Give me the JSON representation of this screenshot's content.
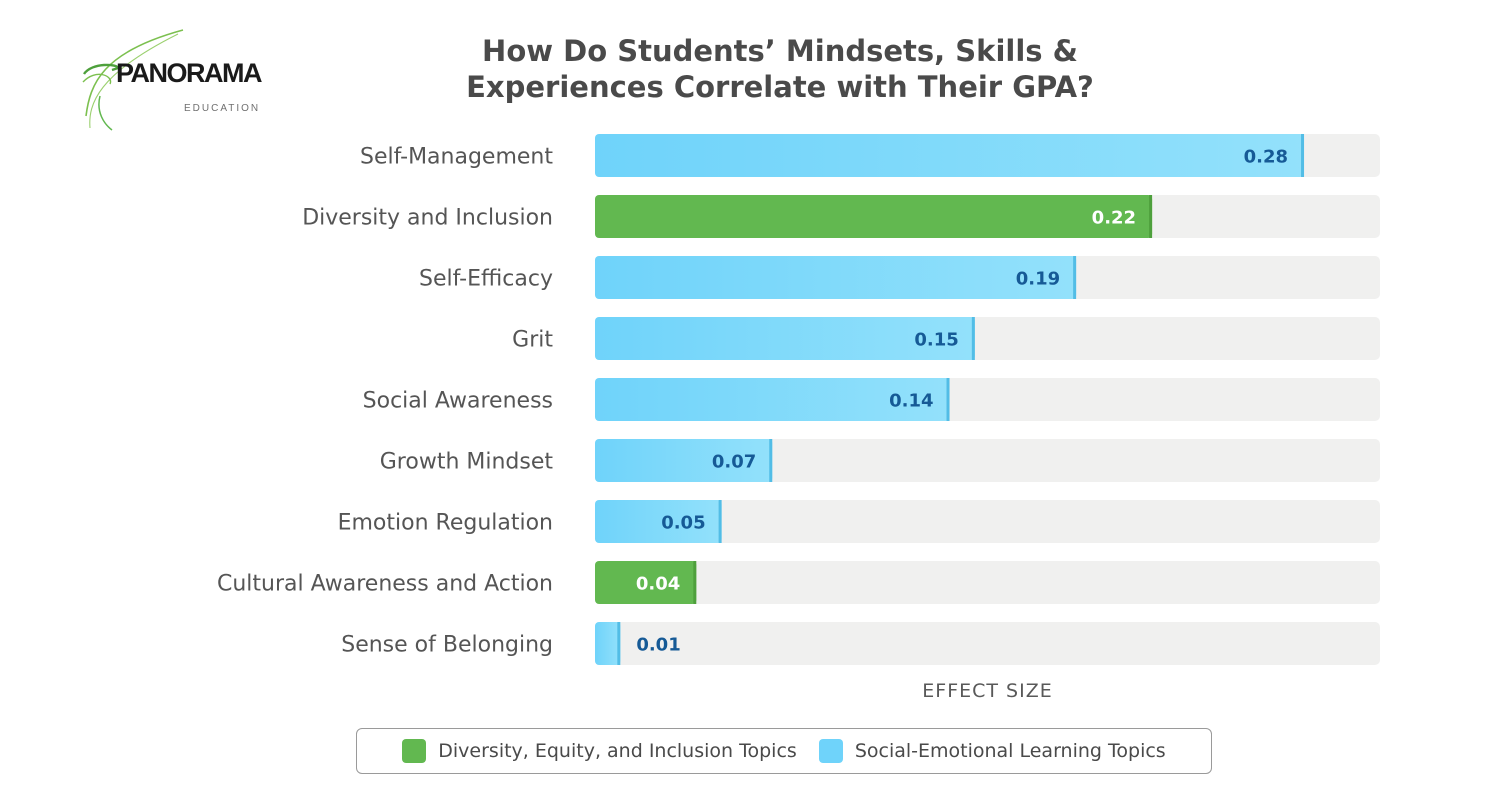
{
  "logo": {
    "brand": "PANORAMA",
    "sub": "EDUCATION"
  },
  "title": {
    "line1": "How Do Students’ Mindsets, Skills &",
    "line2": "Experiences Correlate with Their GPA?"
  },
  "colors": {
    "dei": "#62b850",
    "dei_edge": "#4ea03c",
    "sel": "#6fd3fa",
    "sel_light": "#93e1fb",
    "sel_edge": "#52bde6",
    "track": "#f0f0ef",
    "sel_label": "#165a96",
    "dei_label": "#ffffff",
    "category_text": "#555555"
  },
  "chart_data": {
    "type": "bar",
    "orientation": "horizontal",
    "xlabel": "EFFECT SIZE",
    "xlim": [
      0,
      0.31
    ],
    "categories": [
      "Self-Management",
      "Diversity and Inclusion",
      "Self-Efficacy",
      "Grit",
      "Social Awareness",
      "Growth Mindset",
      "Emotion Regulation",
      "Cultural Awareness and Action",
      "Sense of Belonging"
    ],
    "values": [
      0.28,
      0.22,
      0.19,
      0.15,
      0.14,
      0.07,
      0.05,
      0.04,
      0.01
    ],
    "labels": [
      "0.28",
      "0.22",
      "0.19",
      "0.15",
      "0.14",
      "0.07",
      "0.05",
      "0.04",
      "0.01"
    ],
    "groups": [
      "sel",
      "dei",
      "sel",
      "sel",
      "sel",
      "sel",
      "sel",
      "dei",
      "sel"
    ],
    "legend": [
      {
        "key": "dei",
        "label": "Diversity, Equity, and Inclusion Topics"
      },
      {
        "key": "sel",
        "label": "Social-Emotional Learning Topics"
      }
    ],
    "legend_position": "bottom-center"
  }
}
